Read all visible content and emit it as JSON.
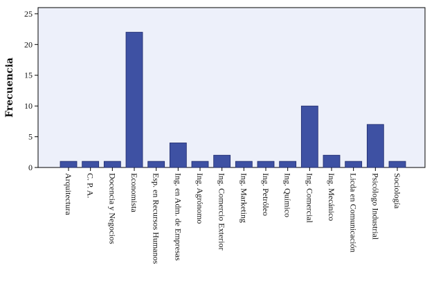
{
  "chart_data": {
    "type": "bar",
    "ylabel": "Frecuencia",
    "xlabel": "",
    "title": "",
    "ylim": [
      0,
      26
    ],
    "yticks": [
      0,
      5,
      10,
      15,
      20,
      25
    ],
    "grid": false,
    "categories": [
      "Arquitectura",
      "C. P. A.",
      "Docencia y Negocios",
      "Economista",
      "Esp. en Recursos Humanos",
      "Ing. en Adm. de Empresas",
      "Ing. Agrónomo",
      "Ing. Comercio Exterior",
      "Ing. Marketing",
      "Ing. Petróleo",
      "Ing. Químico",
      "Ing. Comercial",
      "Ing. Mecánico",
      "Licda en Comunicación",
      "Psicólogo Industrial",
      "Sociología"
    ],
    "values": [
      1,
      1,
      1,
      22,
      1,
      4,
      1,
      2,
      1,
      1,
      1,
      10,
      2,
      1,
      7,
      1
    ],
    "colors": {
      "bar": "#3e51a3",
      "bar_stroke": "#1e2a6b",
      "plot_background": "#edf0fa",
      "axis": "#000000"
    }
  }
}
